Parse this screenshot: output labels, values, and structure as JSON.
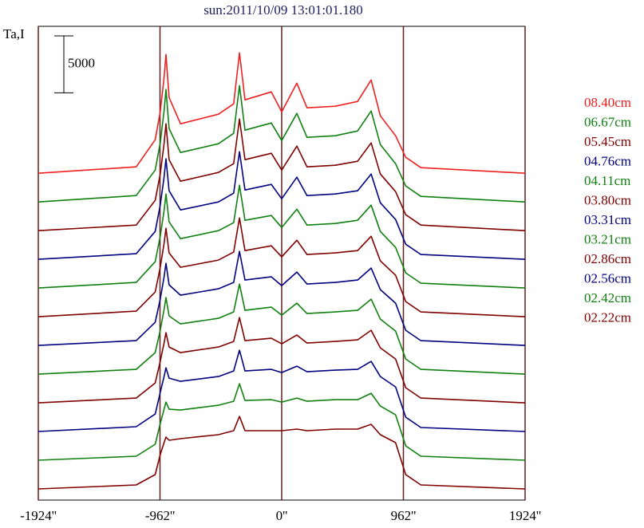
{
  "chart_data": {
    "type": "line",
    "title": "sun:2011/10/09 13:01:01.180",
    "y_label": "Ta,I",
    "scale_bar": 5000,
    "x": [
      -1924,
      -1150,
      -1000,
      -960,
      -930,
      -915,
      -890,
      -800,
      -500,
      -380,
      -334,
      -290,
      -82,
      0,
      120,
      200,
      423,
      600,
      707,
      780,
      900,
      980,
      1100,
      1924
    ],
    "xlim": [
      -1924,
      1924
    ],
    "xticks": [
      {
        "value": -1924,
        "label": "-1924''"
      },
      {
        "value": -962,
        "label": "-962''"
      },
      {
        "value": 0,
        "label": "0''"
      },
      {
        "value": 962,
        "label": "962''"
      },
      {
        "value": 1924,
        "label": "1924''"
      }
    ],
    "ylim": [
      0,
      41600
    ],
    "grid": true,
    "grid_color": "#602020",
    "series": [
      {
        "name": "08.40cm",
        "color": "#ee2020",
        "values": [
          28700,
          29260,
          31640,
          34090,
          37100,
          39130,
          35350,
          33040,
          33880,
          34790,
          39270,
          35140,
          35840,
          34090,
          36610,
          34440,
          34580,
          35000,
          36890,
          33740,
          31990,
          30100,
          29190,
          28700
        ]
      },
      {
        "name": "06.67cm",
        "color": "#108010",
        "values": [
          26180,
          26740,
          28980,
          31360,
          34160,
          36050,
          32620,
          30520,
          31290,
          32200,
          36400,
          32480,
          33110,
          31570,
          33950,
          31850,
          31990,
          32410,
          34160,
          31220,
          29540,
          27580,
          26670,
          26180
        ]
      },
      {
        "name": "05.45cm",
        "color": "#800000",
        "values": [
          23660,
          24150,
          26320,
          28630,
          31290,
          33040,
          29890,
          28000,
          28770,
          29540,
          33460,
          29890,
          30450,
          28980,
          31080,
          29260,
          29400,
          29750,
          31360,
          28630,
          27090,
          25060,
          24150,
          23660
        ]
      },
      {
        "name": "04.76cm",
        "color": "#000080",
        "values": [
          21140,
          21630,
          23590,
          25900,
          28350,
          29960,
          27160,
          25480,
          26180,
          26950,
          30590,
          27230,
          27720,
          26460,
          28350,
          26740,
          26880,
          27160,
          28630,
          26110,
          24640,
          22470,
          21560,
          21140
        ]
      },
      {
        "name": "04.11cm",
        "color": "#108010",
        "values": [
          18620,
          19110,
          20930,
          23170,
          25410,
          26880,
          24430,
          22960,
          23660,
          24360,
          27650,
          24570,
          24990,
          23940,
          25550,
          24150,
          24290,
          24570,
          25900,
          23590,
          22190,
          19950,
          19040,
          18620
        ]
      },
      {
        "name": "03.80cm",
        "color": "#800000",
        "values": [
          16100,
          16590,
          18270,
          20440,
          22540,
          23870,
          21700,
          20440,
          21070,
          21770,
          24780,
          21910,
          22330,
          21350,
          22820,
          21560,
          21700,
          21910,
          23170,
          21000,
          19740,
          17430,
          16520,
          16100
        ]
      },
      {
        "name": "03.31cm",
        "color": "#000080",
        "values": [
          13580,
          14000,
          15610,
          17640,
          19600,
          20790,
          18900,
          17990,
          18550,
          19110,
          21840,
          19320,
          19600,
          18830,
          20020,
          18970,
          19110,
          19320,
          20370,
          18480,
          17290,
          14910,
          14000,
          13580
        ]
      },
      {
        "name": "03.21cm",
        "color": "#108010",
        "values": [
          11060,
          11480,
          12950,
          14910,
          16730,
          17780,
          16170,
          15470,
          15960,
          16520,
          18970,
          16660,
          16940,
          16240,
          17290,
          16380,
          16520,
          16660,
          17640,
          15890,
          14840,
          12390,
          11480,
          11060
        ]
      },
      {
        "name": "02.86cm",
        "color": "#800000",
        "values": [
          8540,
          8960,
          10290,
          12180,
          13790,
          14700,
          13440,
          12950,
          13440,
          13930,
          16030,
          14000,
          14210,
          13720,
          14490,
          13790,
          13930,
          14070,
          14910,
          13370,
          12390,
          9870,
          8960,
          8540
        ]
      },
      {
        "name": "02.56cm",
        "color": "#000080",
        "values": [
          6020,
          6440,
          7560,
          9450,
          10850,
          11620,
          10710,
          10430,
          10850,
          11340,
          13160,
          11340,
          11480,
          11200,
          11760,
          11270,
          11410,
          11480,
          12180,
          10850,
          9940,
          7280,
          6370,
          6020
        ]
      },
      {
        "name": "02.42cm",
        "color": "#108010",
        "values": [
          3500,
          3850,
          4900,
          6720,
          7980,
          8610,
          7980,
          7910,
          8330,
          8680,
          10220,
          8750,
          8820,
          8610,
          8960,
          8680,
          8820,
          8820,
          9380,
          8260,
          7490,
          4760,
          3850,
          3500
        ]
      },
      {
        "name": "02.22cm",
        "color": "#800000",
        "values": [
          980,
          1330,
          2240,
          3990,
          5040,
          5530,
          5250,
          5390,
          5740,
          6090,
          7350,
          6090,
          6090,
          6090,
          6230,
          6090,
          6230,
          6230,
          6650,
          5740,
          5040,
          2240,
          1330,
          980
        ]
      }
    ]
  }
}
